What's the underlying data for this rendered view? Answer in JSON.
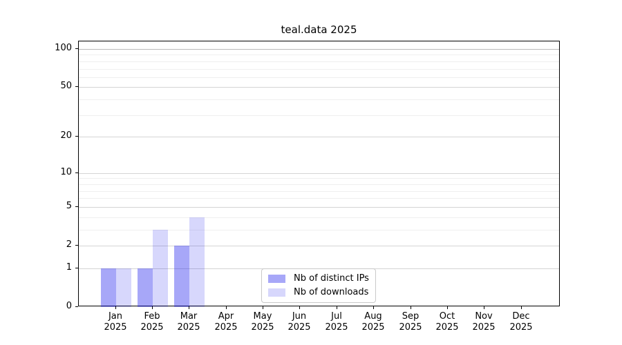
{
  "chart_data": {
    "type": "bar",
    "title": "teal.data 2025",
    "categories": [
      {
        "month": "Jan",
        "year": "2025"
      },
      {
        "month": "Feb",
        "year": "2025"
      },
      {
        "month": "Mar",
        "year": "2025"
      },
      {
        "month": "Apr",
        "year": "2025"
      },
      {
        "month": "May",
        "year": "2025"
      },
      {
        "month": "Jun",
        "year": "2025"
      },
      {
        "month": "Jul",
        "year": "2025"
      },
      {
        "month": "Aug",
        "year": "2025"
      },
      {
        "month": "Sep",
        "year": "2025"
      },
      {
        "month": "Oct",
        "year": "2025"
      },
      {
        "month": "Nov",
        "year": "2025"
      },
      {
        "month": "Dec",
        "year": "2025"
      }
    ],
    "series": [
      {
        "name": "Nb of distinct IPs",
        "approx_hex": "#a7a7f8",
        "rgb": [
          34,
          34,
          238
        ],
        "alpha": 0.4,
        "values": [
          1,
          1,
          2,
          0,
          0,
          0,
          0,
          0,
          0,
          0,
          0,
          0
        ]
      },
      {
        "name": "Nb of downloads",
        "approx_hex": "#dcdcfb",
        "rgb": [
          34,
          34,
          238
        ],
        "alpha": 0.18,
        "values": [
          1,
          3,
          4,
          0,
          0,
          0,
          0,
          0,
          0,
          0,
          0,
          0
        ]
      }
    ],
    "y_axis": {
      "scale": "log1p",
      "major_ticks": [
        100,
        50,
        20,
        10,
        5,
        2,
        1,
        0
      ],
      "minor_gridlines": [
        3,
        4,
        6,
        7,
        8,
        9,
        30,
        40,
        60,
        70,
        80,
        90
      ],
      "range": [
        0,
        115
      ]
    },
    "x_axis": {
      "label_style": "month over year, two lines"
    },
    "legend_position": "bottom-center",
    "grid": "horizontal major and minor"
  },
  "colors": {
    "background": "#ffffff",
    "spine": "#000000",
    "grid_emphasis": "#b9b9b9",
    "grid_major": "#d4d4d4",
    "grid_minor": "#efefef",
    "text": "#000000",
    "legend_border": "#c9c9c9"
  }
}
